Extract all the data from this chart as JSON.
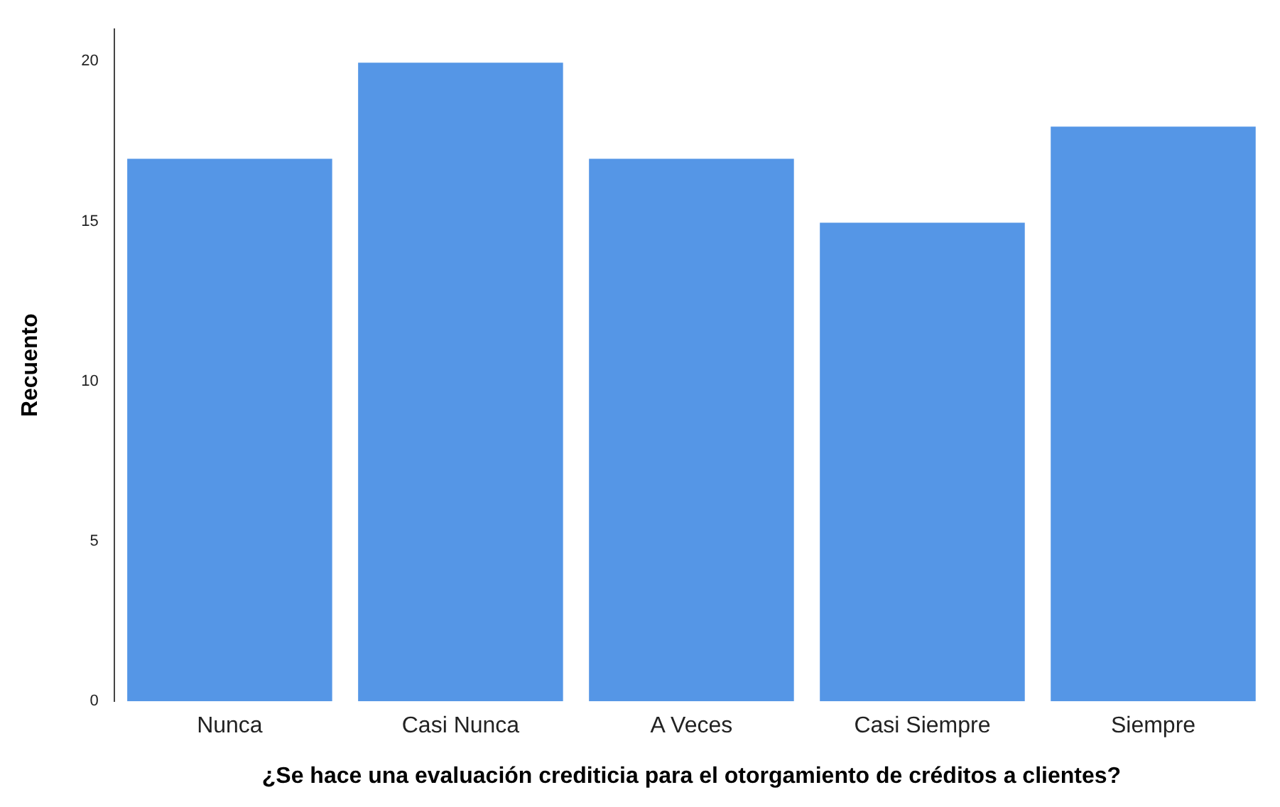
{
  "chart_data": {
    "type": "bar",
    "xlabel": "¿Se hace una evaluación crediticia para el otorgamiento de créditos a clientes?",
    "ylabel": "Recuento",
    "categories": [
      "Nunca",
      "Casi Nunca",
      "A Veces",
      "Casi Siempre",
      "Siempre"
    ],
    "values": [
      17,
      20,
      17,
      15,
      18
    ],
    "color": "#5596e6",
    "ylim": [
      0,
      21
    ],
    "yticks": [
      0,
      5,
      10,
      15,
      20
    ],
    "grid": false,
    "legend": false
  }
}
